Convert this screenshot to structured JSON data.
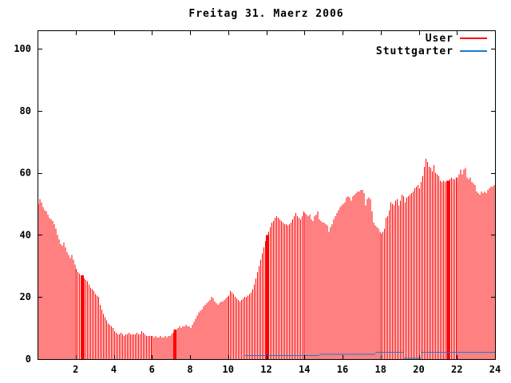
{
  "window": {
    "background": "#ffffff",
    "text_color": "#000000",
    "axis_color": "#000000"
  },
  "chart_data": {
    "type": "bar",
    "title": "Freitag 31. Maerz 2006",
    "xlabel": "",
    "ylabel": "",
    "xlim": [
      0,
      24
    ],
    "ylim": [
      0,
      105.9
    ],
    "xticks": [
      2,
      4,
      6,
      8,
      10,
      12,
      14,
      16,
      18,
      20,
      22,
      24
    ],
    "yticks": [
      0,
      20,
      40,
      60,
      80,
      100
    ],
    "grid": false,
    "legend_position": "top-right",
    "samples_per_hour": 12,
    "series": [
      {
        "name": "User",
        "color": "#ff0000",
        "style": "impulses",
        "wide_marker_indices": [
          28,
          86,
          144,
          258
        ],
        "values": [
          50,
          51.5,
          50.5,
          49,
          48,
          47.5,
          46.5,
          45.5,
          45,
          44.5,
          43.5,
          42,
          40,
          38.5,
          37,
          36.5,
          37.5,
          36,
          34.5,
          33.5,
          32.5,
          33.5,
          32,
          30.5,
          29,
          28,
          27.5,
          27,
          27,
          26,
          25.5,
          25,
          24,
          23,
          22.5,
          22,
          21,
          20.5,
          20,
          17.5,
          16,
          14.5,
          13.5,
          12.5,
          11.5,
          11,
          10.5,
          10,
          9,
          8.5,
          8,
          8,
          8.5,
          8,
          7.5,
          8,
          8,
          8.5,
          8,
          8,
          8,
          8,
          8.5,
          8,
          8,
          9,
          8.5,
          8,
          7.5,
          7.5,
          7.5,
          7.5,
          7.5,
          7,
          7.5,
          7,
          7,
          7.5,
          7,
          7,
          7.5,
          7,
          7.5,
          7.5,
          8,
          8.5,
          9.5,
          9.5,
          10,
          10.5,
          10,
          10.5,
          10.5,
          11,
          10.5,
          10.5,
          10,
          11,
          12,
          13,
          14,
          15,
          15.5,
          16,
          17,
          17.5,
          18,
          18.5,
          19,
          20,
          19.5,
          18.5,
          18,
          17.5,
          18,
          18.5,
          18.5,
          19,
          19.5,
          20,
          20.5,
          22,
          21.5,
          21,
          20,
          19.5,
          19,
          18.5,
          19,
          19.5,
          20,
          20,
          20.5,
          21,
          21.5,
          22.5,
          24,
          26,
          28,
          30,
          32,
          34,
          36,
          38,
          40,
          41,
          42.5,
          44,
          44.5,
          45.5,
          46,
          45.5,
          45,
          44.5,
          44,
          43.5,
          43.5,
          43,
          43.5,
          44,
          45,
          46,
          47,
          46,
          45.5,
          45,
          46,
          47.5,
          47,
          46.5,
          46,
          46.5,
          45,
          44.5,
          46,
          46.5,
          47.5,
          45,
          44.5,
          44,
          44,
          43.5,
          43,
          41,
          42.5,
          43.5,
          45,
          46,
          47,
          48,
          49,
          49.5,
          50,
          50.5,
          52,
          52.5,
          52,
          51,
          52.5,
          53,
          53.5,
          54,
          54,
          54.5,
          54.5,
          53.5,
          49.5,
          51.5,
          52,
          51.5,
          47.5,
          44,
          43,
          42.5,
          42,
          41,
          40.5,
          41,
          42,
          45.5,
          46,
          48,
          50.5,
          50,
          49.5,
          51,
          51.5,
          49.5,
          51,
          53,
          52.5,
          50.5,
          52,
          52.5,
          53,
          53.5,
          54,
          55,
          55.5,
          56,
          55,
          57,
          59,
          62,
          64.5,
          63.5,
          62,
          61.5,
          60.5,
          62.5,
          60,
          59.5,
          59,
          57.5,
          57,
          57.5,
          57,
          57.5,
          57.5,
          58,
          58.5,
          58,
          58,
          58.5,
          58.5,
          59.5,
          61,
          59.5,
          61,
          61.5,
          58.5,
          58,
          58.5,
          57,
          56.5,
          56,
          54,
          53.5,
          53,
          54,
          53.5,
          54,
          53.5,
          54.5,
          55,
          55.5,
          55.5,
          56
        ]
      },
      {
        "name": "Stuttgarter",
        "color": "#0e7fd4",
        "style": "steps",
        "segments": [
          {
            "x_start": 10.9,
            "x_end": 14.8,
            "value": 1.2
          },
          {
            "x_start": 14.8,
            "x_end": 17.7,
            "value": 1.5
          },
          {
            "x_start": 17.7,
            "x_end": 19.2,
            "value": 2.2
          },
          {
            "x_start": 19.2,
            "x_end": 20.1,
            "value": 0.3
          },
          {
            "x_start": 20.1,
            "x_end": 24.0,
            "value": 2.2
          }
        ]
      }
    ]
  }
}
